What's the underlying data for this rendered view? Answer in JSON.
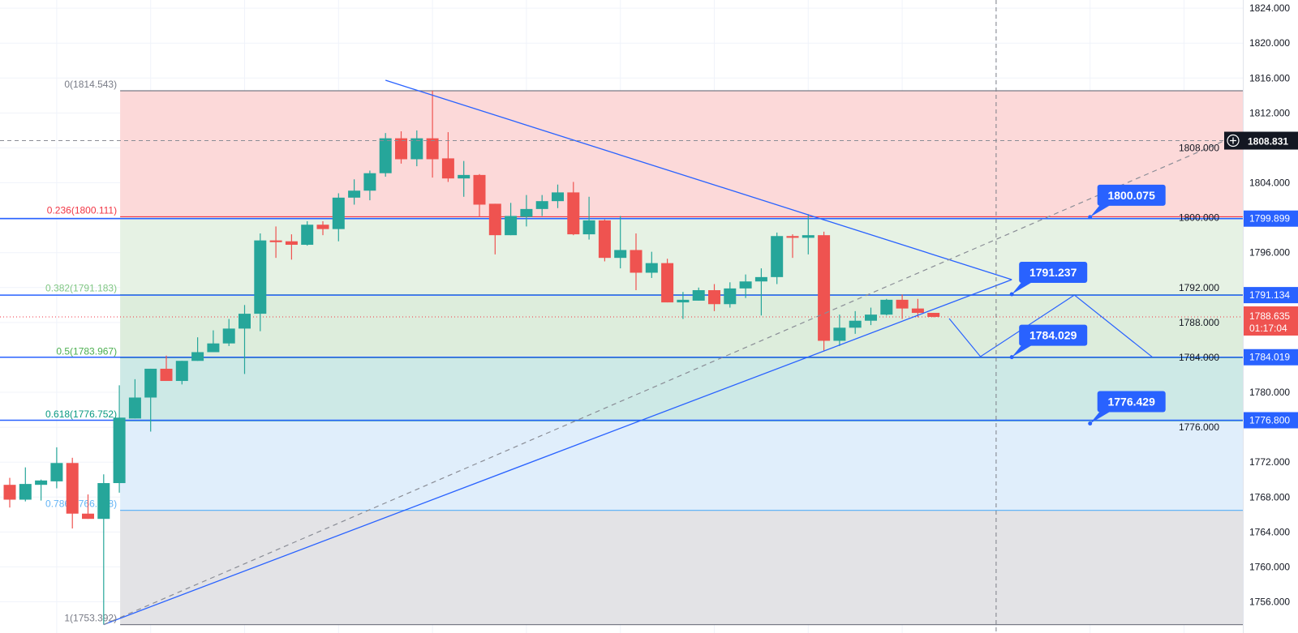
{
  "chart_data": {
    "type": "candlestick",
    "ylim": [
      1752.43,
      1824.94
    ],
    "grid": true,
    "y_ticks": [
      "1824.000",
      "1820.000",
      "1816.000",
      "1812.000",
      "1808.000",
      "1804.000",
      "1800.000",
      "1796.000",
      "1792.000",
      "1788.000",
      "1784.000",
      "1780.000",
      "1776.000",
      "1772.000",
      "1768.000",
      "1764.000",
      "1760.000",
      "1756.000"
    ],
    "colors": {
      "up": "#26a69a",
      "down": "#ef5350",
      "drawing": "#2962ff",
      "price_line": "#f23645"
    },
    "candles": [
      [
        1769.4,
        1770.2,
        1766.8,
        1767.7
      ],
      [
        1767.7,
        1771.4,
        1767.5,
        1769.5
      ],
      [
        1769.4,
        1770.0,
        1767.6,
        1769.9
      ],
      [
        1769.8,
        1773.7,
        1769.0,
        1771.9
      ],
      [
        1771.9,
        1772.5,
        1764.4,
        1766.1
      ],
      [
        1766.1,
        1768.3,
        1765.5,
        1765.5
      ],
      [
        1765.5,
        1770.6,
        1753.392,
        1769.6
      ],
      [
        1769.6,
        1780.8,
        1768.5,
        1777.1
      ],
      [
        1777.0,
        1781.5,
        1777.0,
        1779.4
      ],
      [
        1779.4,
        1782.7,
        1775.5,
        1782.7
      ],
      [
        1782.7,
        1784.2,
        1781.3,
        1781.3
      ],
      [
        1781.3,
        1783.6,
        1780.9,
        1783.6
      ],
      [
        1783.6,
        1786.3,
        1783.6,
        1784.6
      ],
      [
        1784.6,
        1787.1,
        1784.6,
        1785.6
      ],
      [
        1785.6,
        1788.4,
        1785.3,
        1787.3
      ],
      [
        1787.3,
        1790.0,
        1782.1,
        1789.0
      ],
      [
        1789.0,
        1798.2,
        1787.0,
        1797.4
      ],
      [
        1797.4,
        1799.0,
        1795.4,
        1797.2
      ],
      [
        1797.3,
        1798.1,
        1795.2,
        1796.9
      ],
      [
        1796.9,
        1799.6,
        1796.8,
        1799.2
      ],
      [
        1799.2,
        1799.6,
        1798.0,
        1798.7
      ],
      [
        1798.7,
        1802.8,
        1797.3,
        1802.3
      ],
      [
        1802.3,
        1804.4,
        1801.5,
        1803.1
      ],
      [
        1803.1,
        1805.4,
        1802.0,
        1805.1
      ],
      [
        1805.1,
        1809.7,
        1804.7,
        1809.1
      ],
      [
        1809.1,
        1809.9,
        1806.2,
        1806.7
      ],
      [
        1806.7,
        1810.0,
        1805.9,
        1809.1
      ],
      [
        1809.1,
        1814.543,
        1804.6,
        1806.7
      ],
      [
        1806.8,
        1809.8,
        1804.1,
        1804.5
      ],
      [
        1804.5,
        1806.5,
        1802.4,
        1804.9
      ],
      [
        1804.9,
        1805.0,
        1800.1,
        1801.5
      ],
      [
        1801.6,
        1801.6,
        1795.8,
        1798.0
      ],
      [
        1798.0,
        1801.7,
        1798.0,
        1800.2
      ],
      [
        1800.1,
        1802.6,
        1799.0,
        1801.0
      ],
      [
        1801.0,
        1802.6,
        1800.2,
        1801.9
      ],
      [
        1801.9,
        1803.8,
        1801.1,
        1802.9
      ],
      [
        1802.9,
        1804.1,
        1798.0,
        1798.1
      ],
      [
        1798.1,
        1802.4,
        1797.5,
        1799.7
      ],
      [
        1799.7,
        1799.8,
        1795.0,
        1795.4
      ],
      [
        1795.4,
        1800.2,
        1794.2,
        1796.3
      ],
      [
        1796.3,
        1798.2,
        1791.7,
        1793.7
      ],
      [
        1793.7,
        1796.1,
        1793.1,
        1794.8
      ],
      [
        1794.8,
        1795.3,
        1790.3,
        1790.3
      ],
      [
        1790.3,
        1791.5,
        1788.4,
        1790.6
      ],
      [
        1790.5,
        1792.0,
        1790.5,
        1791.7
      ],
      [
        1791.7,
        1792.4,
        1789.3,
        1790.1
      ],
      [
        1790.1,
        1792.6,
        1789.7,
        1791.9
      ],
      [
        1791.9,
        1793.5,
        1790.8,
        1792.7
      ],
      [
        1792.7,
        1794.2,
        1788.8,
        1793.2
      ],
      [
        1793.2,
        1798.3,
        1792.4,
        1797.9
      ],
      [
        1797.9,
        1798.1,
        1795.4,
        1797.7
      ],
      [
        1797.7,
        1800.4,
        1795.8,
        1798.0
      ],
      [
        1798.0,
        1798.4,
        1784.8,
        1785.9
      ],
      [
        1785.9,
        1788.9,
        1785.3,
        1787.4
      ],
      [
        1787.4,
        1789.3,
        1786.7,
        1788.2
      ],
      [
        1788.2,
        1789.7,
        1787.7,
        1788.9
      ],
      [
        1788.9,
        1790.7,
        1788.8,
        1790.6
      ],
      [
        1790.6,
        1791.2,
        1788.4,
        1789.6
      ],
      [
        1789.6,
        1790.7,
        1788.6,
        1789.1
      ],
      [
        1789.1,
        1789.1,
        1788.6,
        1788.635
      ]
    ],
    "fibonacci": {
      "start_bar": 7,
      "levels": [
        {
          "ratio": 0,
          "price": 1814.543,
          "label": "0(1814.543)",
          "color": "#787b86",
          "fill": "#fcd9d9"
        },
        {
          "ratio": 0.236,
          "price": 1800.111,
          "label": "0.236(1800.111)",
          "color": "#f23645",
          "fill": "#e6f2e4"
        },
        {
          "ratio": 0.382,
          "price": 1791.183,
          "label": "0.382(1791.183)",
          "color": "#81c784",
          "fill": "#ddeddc"
        },
        {
          "ratio": 0.5,
          "price": 1783.967,
          "label": "0.5(1783.967)",
          "color": "#4caf50",
          "fill": "#cde9e6"
        },
        {
          "ratio": 0.618,
          "price": 1776.752,
          "label": "0.618(1776.752)",
          "color": "#089981",
          "fill": "#e0eefb"
        },
        {
          "ratio": 0.786,
          "price": 1766.478,
          "label": "0.786(1766.478)",
          "color": "#64b5f6",
          "fill": "#e3e3e6"
        },
        {
          "ratio": 1,
          "price": 1753.392,
          "label": "1(1753.392)",
          "color": "#787b86",
          "fill": null
        }
      ]
    },
    "horizontal_lines": [
      {
        "price": 1799.899,
        "label": "1799.899"
      },
      {
        "price": 1791.134,
        "label": "1791.134"
      },
      {
        "price": 1784.019,
        "label": "1784.019"
      },
      {
        "price": 1776.8,
        "label": "1776.800"
      }
    ],
    "trend_lines": [
      {
        "name": "triangle-upper-line",
        "from": [
          24,
          1815.75
        ],
        "to": [
          64,
          1792.91
        ],
        "dashed": false
      },
      {
        "name": "triangle-lower-line",
        "from": [
          6,
          1753.392
        ],
        "to": [
          64,
          1792.91
        ],
        "dashed": false
      },
      {
        "name": "fib-trend-dashed-line",
        "from": [
          6,
          1753.392
        ],
        "to": [
          77.6,
          1808.831
        ],
        "dashed": true
      }
    ],
    "zigzag_projection": [
      [
        60,
        1788.45
      ],
      [
        62,
        1784.09
      ],
      [
        68,
        1791.14
      ],
      [
        73,
        1784.0
      ]
    ],
    "price_callouts": [
      {
        "bar": 69,
        "price": 1800.075,
        "label": "1800.075"
      },
      {
        "bar": 64,
        "price": 1791.237,
        "label": "1791.237"
      },
      {
        "bar": 64,
        "price": 1784.029,
        "label": "1784.029"
      },
      {
        "bar": 69,
        "price": 1776.429,
        "label": "1776.429"
      }
    ],
    "crosshair": {
      "bar": 63,
      "price": 1808.831,
      "label": "1808.831",
      "icon": "plus-circle-icon"
    },
    "last_price": {
      "price": 1788.635,
      "label": "1788.635",
      "countdown": "01:17:04"
    }
  }
}
